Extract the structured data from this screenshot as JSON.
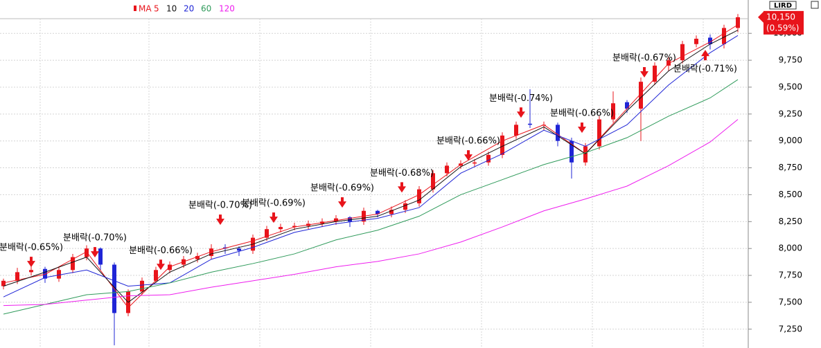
{
  "chart_data": {
    "type": "candlestick",
    "toolbar_label": "LIRD",
    "legend_title": "MA",
    "last_price": {
      "value": 10150,
      "label": "10,150",
      "change": "(0.59%)",
      "color": "#e8141b"
    },
    "ylim": [
      7075,
      10310
    ],
    "yticks": [
      {
        "value": 7250,
        "label": "7,250"
      },
      {
        "value": 7500,
        "label": "7,500"
      },
      {
        "value": 7750,
        "label": "7,750"
      },
      {
        "value": 8000,
        "label": "8,000"
      },
      {
        "value": 8250,
        "label": "8,250"
      },
      {
        "value": 8500,
        "label": "8,500"
      },
      {
        "value": 8750,
        "label": "8,750"
      },
      {
        "value": 9000,
        "label": "9,000"
      },
      {
        "value": 9250,
        "label": "9,250"
      },
      {
        "value": 9500,
        "label": "9,500"
      },
      {
        "value": 9750,
        "label": "9,750"
      },
      {
        "value": 10000,
        "label": "10,000"
      }
    ],
    "grid": true,
    "up_color": "#e8141b",
    "down_color": "#1f25d6",
    "open": [
      7650,
      7700,
      7780,
      7810,
      7720,
      7800,
      7920,
      8000,
      7850,
      7400,
      7600,
      7700,
      7800,
      7850,
      7900,
      7930,
      8010,
      8000,
      7980,
      8100,
      8180,
      8200,
      8210,
      8230,
      8250,
      8290,
      8250,
      8350,
      8320,
      8360,
      8420,
      8550,
      8700,
      8770,
      8790,
      8800,
      8870,
      9050,
      9160,
      9150,
      9150,
      9000,
      8800,
      8950,
      9200,
      9360,
      9300,
      9550,
      9700,
      9750,
      9900,
      9960,
      9900,
      10050
    ],
    "high": [
      7720,
      7820,
      7840,
      7830,
      7830,
      7950,
      8030,
      8010,
      7870,
      7620,
      7730,
      7830,
      7880,
      7930,
      7960,
      8040,
      8040,
      8020,
      8130,
      8210,
      8230,
      8240,
      8260,
      8280,
      8310,
      8300,
      8380,
      8360,
      8390,
      8450,
      8580,
      8730,
      8800,
      8820,
      8830,
      8900,
      9080,
      9180,
      9480,
      9180,
      9170,
      9030,
      8980,
      9230,
      9460,
      9380,
      9590,
      9730,
      9780,
      9930,
      9980,
      9990,
      10080,
      10180
    ],
    "low": [
      7620,
      7670,
      7750,
      7680,
      7690,
      7770,
      7890,
      7800,
      7100,
      7370,
      7570,
      7680,
      7770,
      7820,
      7870,
      7900,
      7950,
      7930,
      7950,
      8070,
      8150,
      8170,
      8180,
      8200,
      8220,
      8200,
      8220,
      8290,
      8290,
      8330,
      8390,
      8520,
      8670,
      8740,
      8760,
      8770,
      8840,
      9020,
      9120,
      9100,
      8950,
      8650,
      8770,
      8920,
      9170,
      9260,
      9000,
      9520,
      9650,
      9720,
      9870,
      9850,
      9860,
      10010
    ],
    "close": [
      7700,
      7780,
      7800,
      7720,
      7800,
      7920,
      8000,
      7850,
      7400,
      7600,
      7700,
      7800,
      7850,
      7900,
      7930,
      8000,
      8000,
      7980,
      8100,
      8180,
      8200,
      8210,
      8230,
      8250,
      8280,
      8250,
      8350,
      8320,
      8360,
      8420,
      8550,
      8700,
      8770,
      8790,
      8800,
      8870,
      9050,
      9150,
      9150,
      9150,
      9000,
      8800,
      8950,
      9200,
      9350,
      9300,
      9550,
      9700,
      9750,
      9900,
      9950,
      9900,
      10050,
      10150
    ],
    "series": [
      {
        "name": "5",
        "color": "#e8141b",
        "x": [
          0,
          3,
          6,
          9,
          12,
          15,
          18,
          21,
          24,
          27,
          30,
          33,
          36,
          39,
          42,
          45,
          48,
          51,
          53
        ],
        "values": [
          7680,
          7760,
          7970,
          7450,
          7830,
          7970,
          8070,
          8200,
          8260,
          8320,
          8500,
          8780,
          9000,
          9150,
          8880,
          9300,
          9720,
          9920,
          10080
        ]
      },
      {
        "name": "10",
        "color": "#111111",
        "x": [
          0,
          3,
          6,
          9,
          12,
          15,
          18,
          21,
          24,
          27,
          30,
          33,
          36,
          39,
          42,
          45,
          48,
          51,
          53
        ],
        "values": [
          7650,
          7780,
          7920,
          7500,
          7780,
          7950,
          8040,
          8180,
          8250,
          8300,
          8450,
          8760,
          8950,
          9130,
          8880,
          9280,
          9650,
          9900,
          10030
        ]
      },
      {
        "name": "20",
        "color": "#1f25d6",
        "x": [
          0,
          3,
          6,
          9,
          12,
          15,
          18,
          21,
          24,
          27,
          30,
          33,
          36,
          39,
          42,
          45,
          48,
          51,
          53
        ],
        "values": [
          7550,
          7730,
          7800,
          7650,
          7680,
          7900,
          8010,
          8150,
          8230,
          8280,
          8380,
          8700,
          8880,
          9100,
          8950,
          9150,
          9520,
          9820,
          9980
        ]
      },
      {
        "name": "60",
        "color": "#2e9a5a",
        "x": [
          0,
          3,
          6,
          9,
          12,
          15,
          18,
          21,
          24,
          27,
          30,
          33,
          36,
          39,
          42,
          45,
          48,
          51,
          53
        ],
        "values": [
          7390,
          7480,
          7570,
          7600,
          7680,
          7780,
          7860,
          7950,
          8080,
          8170,
          8300,
          8500,
          8640,
          8780,
          8890,
          9030,
          9230,
          9400,
          9570
        ]
      },
      {
        "name": "120",
        "color": "#ee1cee",
        "x": [
          0,
          3,
          6,
          9,
          12,
          15,
          18,
          21,
          24,
          27,
          30,
          33,
          36,
          39,
          42,
          45,
          48,
          51,
          53
        ],
        "values": [
          7470,
          7480,
          7520,
          7560,
          7570,
          7640,
          7700,
          7760,
          7830,
          7880,
          7950,
          8060,
          8200,
          8350,
          8460,
          8580,
          8770,
          8990,
          9200
        ]
      }
    ],
    "annotations": [
      {
        "label": "분배락(-0.65%)",
        "x": 2,
        "value": 7827,
        "direction": "down"
      },
      {
        "label": "분배락(-0.70%)",
        "x": 6.6,
        "value": 7917,
        "direction": "down"
      },
      {
        "label": "분배락(-0.66%)",
        "x": 11.35,
        "value": 7800,
        "direction": "down"
      },
      {
        "label": "분배락(-0.70%)",
        "x": 15.65,
        "value": 8219,
        "direction": "down"
      },
      {
        "label": "분배락(-0.69%)",
        "x": 19.5,
        "value": 8238,
        "direction": "down"
      },
      {
        "label": "분배락(-0.69%)",
        "x": 24.45,
        "value": 8380,
        "direction": "down"
      },
      {
        "label": "분배락(-0.68%)",
        "x": 28.75,
        "value": 8520,
        "direction": "down"
      },
      {
        "label": "분배락(-0.66%)",
        "x": 33.55,
        "value": 8817,
        "direction": "down"
      },
      {
        "label": "분배락(-0.74%)",
        "x": 37.35,
        "value": 9215,
        "direction": "down"
      },
      {
        "label": "분배락(-0.66%)",
        "x": 41.75,
        "value": 9074,
        "direction": "down"
      },
      {
        "label": "분배락(-0.67%)",
        "x": 46.25,
        "value": 9590,
        "direction": "down"
      },
      {
        "label": "분배락(-0.71%)",
        "x": 50.65,
        "value": 9846,
        "direction": "up"
      }
    ]
  }
}
